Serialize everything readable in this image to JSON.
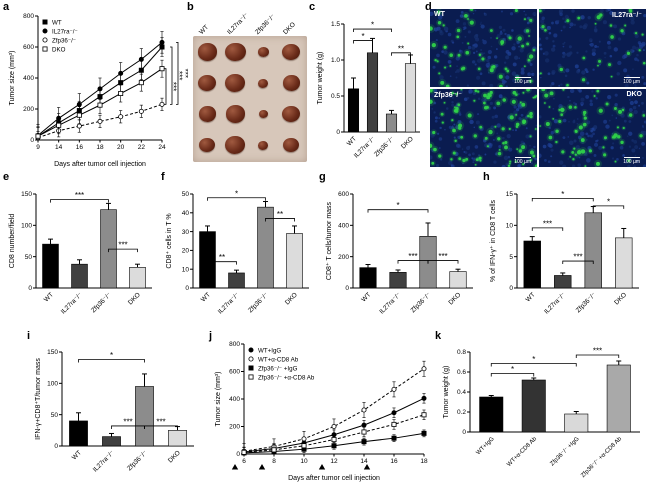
{
  "figure_bg": "#ffffff",
  "panel_letters": {
    "a": "a",
    "b": "b",
    "c": "c",
    "d": "d",
    "e": "e",
    "f": "f",
    "g": "g",
    "h": "h",
    "i": "i",
    "j": "j",
    "k": "k"
  },
  "bar_palette": [
    "#000000",
    "#404040",
    "#8c8c8c",
    "#dcdcdc"
  ],
  "chart_data": [
    {
      "panel": "a",
      "type": "line",
      "title": "",
      "ylabel": "Tumor size (mm³)",
      "xlabel": "Days after tumor cell injection",
      "x_labels": [
        "9",
        "14",
        "16",
        "18",
        "20",
        "22",
        "24"
      ],
      "ylim": [
        0,
        800
      ],
      "yticks": [
        0,
        200,
        400,
        600,
        800
      ],
      "ytick_labels": [
        "0",
        "200",
        "400",
        "600",
        "800"
      ],
      "legend_position": "top-left",
      "grid": false,
      "series": [
        {
          "name": "WT",
          "marker": "square",
          "fill": true,
          "dash": false,
          "err": 60,
          "values": [
            25,
            110,
            190,
            280,
            370,
            450,
            600
          ]
        },
        {
          "name": "IL27ra⁻/⁻",
          "marker": "circle",
          "fill": true,
          "dash": false,
          "err": 70,
          "values": [
            30,
            140,
            230,
            330,
            430,
            520,
            630
          ]
        },
        {
          "name": "Zfp36⁻/⁻",
          "marker": "circle",
          "fill": false,
          "dash": true,
          "err": 40,
          "values": [
            15,
            60,
            90,
            120,
            150,
            185,
            230
          ]
        },
        {
          "name": "DKO",
          "marker": "square",
          "fill": false,
          "dash": false,
          "err": 55,
          "values": [
            25,
            95,
            160,
            225,
            300,
            370,
            460
          ]
        }
      ],
      "right_sig": [
        {
          "between": [
            3,
            2
          ],
          "label": "***"
        },
        {
          "between": [
            0,
            2
          ],
          "label": "***"
        },
        {
          "between": [
            1,
            2
          ],
          "label": "***"
        }
      ]
    },
    {
      "panel": "c",
      "type": "bar",
      "ylabel": "Tumor weight (g)",
      "categories": [
        "WT",
        "IL27ra⁻/⁻",
        "Zfp36⁻/⁻",
        "DKO"
      ],
      "values": [
        0.6,
        1.1,
        0.25,
        0.95
      ],
      "errors": [
        0.15,
        0.2,
        0.05,
        0.12
      ],
      "ylim": [
        0,
        1.5
      ],
      "yticks": [
        0,
        0.5,
        1.0,
        1.5
      ],
      "ytick_labels": [
        "0",
        "0.5",
        "1.0",
        "1.5"
      ],
      "sig": [
        {
          "from": 0,
          "to": 1,
          "label": "*",
          "y": 1.27
        },
        {
          "from": 0,
          "to": 2,
          "label": "*",
          "y": 1.43
        },
        {
          "from": 2,
          "to": 3,
          "label": "**",
          "y": 1.1
        }
      ]
    },
    {
      "panel": "e",
      "type": "bar",
      "ylabel": "CD8 number/field",
      "categories": [
        "WT",
        "IL27ra⁻/⁻",
        "Zfp36⁻/⁻",
        "DKO"
      ],
      "values": [
        70,
        38,
        125,
        33
      ],
      "errors": [
        8,
        7,
        10,
        5
      ],
      "ylim": [
        0,
        150
      ],
      "yticks": [
        0,
        50,
        100,
        150
      ],
      "ytick_labels": [
        "0",
        "50",
        "100",
        "150"
      ],
      "sig": [
        {
          "from": 0,
          "to": 2,
          "label": "***",
          "y": 141
        },
        {
          "from": 2,
          "to": 3,
          "label": "***",
          "y": 62
        }
      ]
    },
    {
      "panel": "f",
      "type": "bar",
      "ylabel": "CD8⁺ cells in T %",
      "categories": [
        "WT",
        "IL27ra⁻/⁻",
        "Zfp36⁻/⁻",
        "DKO"
      ],
      "values": [
        30,
        8,
        43,
        29
      ],
      "errors": [
        3,
        1.5,
        3,
        4
      ],
      "ylim": [
        0,
        50
      ],
      "yticks": [
        0,
        10,
        20,
        30,
        40,
        50
      ],
      "ytick_labels": [
        "0",
        "10",
        "20",
        "30",
        "40",
        "50"
      ],
      "sig": [
        {
          "from": 0,
          "to": 2,
          "label": "*",
          "y": 48
        },
        {
          "from": 0,
          "to": 1,
          "label": "**",
          "y": 14
        },
        {
          "from": 2,
          "to": 3,
          "label": "**",
          "y": 37
        }
      ]
    },
    {
      "panel": "g",
      "type": "bar",
      "ylabel": "CD8⁺ T cells/tumor mass",
      "categories": [
        "WT",
        "IL27ra⁻/⁻",
        "Zfp36⁻/⁻",
        "DKO"
      ],
      "values": [
        130,
        100,
        330,
        105
      ],
      "errors": [
        20,
        15,
        85,
        15
      ],
      "ylim": [
        0,
        600
      ],
      "yticks": [
        0,
        200,
        400,
        600
      ],
      "ytick_labels": [
        "0",
        "200",
        "400",
        "600"
      ],
      "sig": [
        {
          "from": 0,
          "to": 2,
          "label": "*",
          "y": 500
        },
        {
          "from": 1,
          "to": 2,
          "label": "***",
          "y": 175
        },
        {
          "from": 2,
          "to": 3,
          "label": "***",
          "y": 175
        }
      ]
    },
    {
      "panel": "h",
      "type": "bar",
      "ylabel": "% of IFN-γ⁺ in CD8 T cells",
      "categories": [
        "WT",
        "IL27ra⁻/⁻",
        "Zfp36⁻/⁻",
        "DKO"
      ],
      "values": [
        7.5,
        2,
        12,
        8
      ],
      "errors": [
        0.7,
        0.4,
        1,
        1.5
      ],
      "ylim": [
        0,
        15
      ],
      "yticks": [
        0,
        5,
        10,
        15
      ],
      "ytick_labels": [
        "0",
        "5",
        "10",
        "15"
      ],
      "sig": [
        {
          "from": 0,
          "to": 2,
          "label": "*",
          "y": 14.3
        },
        {
          "from": 0,
          "to": 1,
          "label": "***",
          "y": 9.6
        },
        {
          "from": 1,
          "to": 2,
          "label": "***",
          "y": 4.3
        },
        {
          "from": 2,
          "to": 3,
          "label": "*",
          "y": 13.1
        }
      ]
    },
    {
      "panel": "i",
      "type": "bar",
      "ylabel": "IFN-γ+CD8⁺T/tumor mass",
      "categories": [
        "WT",
        "IL27ra⁻/⁻",
        "Zfp36⁻/⁻",
        "DKO"
      ],
      "values": [
        40,
        15,
        95,
        25
      ],
      "errors": [
        13,
        5,
        20,
        6
      ],
      "ylim": [
        0,
        150
      ],
      "yticks": [
        0,
        50,
        100,
        150
      ],
      "ytick_labels": [
        "0",
        "50",
        "100",
        "150"
      ],
      "sig": [
        {
          "from": 0,
          "to": 2,
          "label": "*",
          "y": 138
        },
        {
          "from": 1,
          "to": 2,
          "label": "***",
          "y": 32
        },
        {
          "from": 2,
          "to": 3,
          "label": "***",
          "y": 32
        }
      ]
    },
    {
      "panel": "j",
      "type": "line",
      "ylabel": "Tumor size (mm³)",
      "xlabel": "Days after tumor cell injection",
      "x_labels": [
        "6",
        "8",
        "10",
        "12",
        "14",
        "16",
        "18"
      ],
      "ylim": [
        0,
        800
      ],
      "yticks": [
        0,
        200,
        400,
        600,
        800
      ],
      "ytick_labels": [
        "0",
        "200",
        "400",
        "600",
        "800"
      ],
      "legend_position": "top-left",
      "grid": false,
      "arrow_days": [
        5.4,
        7.2,
        11.2,
        14.2
      ],
      "series": [
        {
          "name": "WT+IgG",
          "marker": "circle",
          "fill": true,
          "dash": false,
          "err": 35,
          "values": [
            15,
            40,
            80,
            140,
            210,
            300,
            405
          ]
        },
        {
          "name": "WT+α-CD8 Ab",
          "marker": "circle",
          "fill": false,
          "dash": true,
          "err": 55,
          "values": [
            20,
            55,
            110,
            200,
            320,
            470,
            620
          ]
        },
        {
          "name": "Zfp36⁻/⁻ +IgG",
          "marker": "square",
          "fill": true,
          "dash": false,
          "err": 25,
          "values": [
            8,
            18,
            35,
            60,
            90,
            115,
            150
          ]
        },
        {
          "name": "Zfp36⁻/⁻ +α-CD8 Ab",
          "marker": "square",
          "fill": false,
          "dash": true,
          "err": 35,
          "values": [
            12,
            30,
            60,
            105,
            160,
            215,
            285
          ]
        }
      ]
    },
    {
      "panel": "k",
      "type": "bar",
      "ylabel": "Tumor weight (g)",
      "categories": [
        "WT+IgG",
        "WT+α-CD8 Ab",
        "Zfp36⁻/⁻ +IgG",
        "Zfp36⁻/⁻ +α-CD8 Ab"
      ],
      "values": [
        0.35,
        0.52,
        0.18,
        0.67
      ],
      "errors": [
        0.015,
        0.02,
        0.025,
        0.04
      ],
      "ylim": [
        0,
        0.8
      ],
      "yticks": [
        0,
        0.2,
        0.4,
        0.6,
        0.8
      ],
      "ytick_labels": [
        "0",
        "0.2",
        "0.4",
        "0.6",
        "0.8"
      ],
      "bar_colors": [
        "#000000",
        "#333333",
        "#d9d9d9",
        "#a9a9a9"
      ],
      "sig": [
        {
          "from": 0,
          "to": 1,
          "label": "*",
          "y": 0.585
        },
        {
          "from": 0,
          "to": 2,
          "label": "*",
          "y": 0.685
        },
        {
          "from": 2,
          "to": 3,
          "label": "***",
          "y": 0.77
        }
      ]
    }
  ],
  "photo_panel": {
    "background": "#d7c7ba",
    "columns": [
      {
        "label": "WT",
        "tumor_diameters": [
          19,
          18,
          17,
          16
        ]
      },
      {
        "label": "IL27ra⁻/⁻",
        "tumor_diameters": [
          21,
          20,
          19,
          20
        ]
      },
      {
        "label": "Zfp36⁻/⁻",
        "tumor_diameters": [
          11,
          10,
          9,
          10
        ]
      },
      {
        "label": "DKO",
        "tumor_diameters": [
          18,
          17,
          18,
          16
        ]
      }
    ]
  },
  "micrograph_panel": {
    "background": "#0a1c50",
    "green": "#2fd14a",
    "scale_text": "100 µm",
    "quadrants": [
      {
        "label": "WT",
        "green_density": "medium",
        "dots": 55
      },
      {
        "label": "IL27ra⁻/⁻",
        "green_density": "low",
        "dots": 28
      },
      {
        "label": "Zfp36⁻/⁻",
        "green_density": "high",
        "dots": 95
      },
      {
        "label": "DKO",
        "green_density": "medium",
        "dots": 60
      }
    ]
  }
}
